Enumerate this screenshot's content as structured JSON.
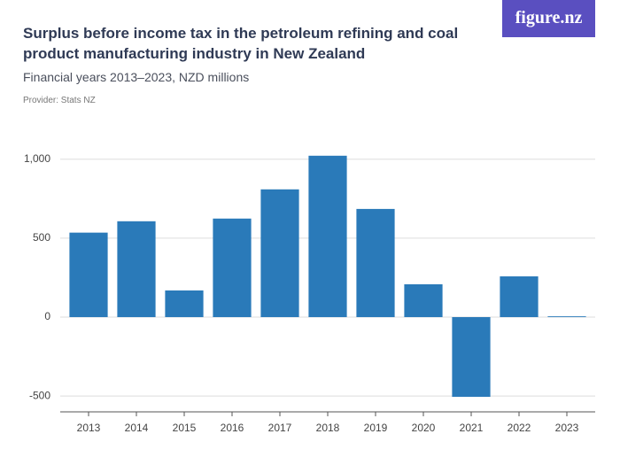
{
  "logo": "figure.nz",
  "chart_data": {
    "type": "bar",
    "title": "Surplus before income tax in the petroleum refining and coal product manufacturing industry in New Zealand",
    "subtitle": "Financial years 2013–2023, NZD millions",
    "caption": "Provider: Stats NZ",
    "categories": [
      "2013",
      "2014",
      "2015",
      "2016",
      "2017",
      "2018",
      "2019",
      "2020",
      "2021",
      "2022",
      "2023"
    ],
    "values": [
      535,
      607,
      169,
      624,
      809,
      1022,
      685,
      208,
      -505,
      258,
      5
    ],
    "color": "#2a7ab9",
    "ylim": [
      -600,
      1150
    ],
    "yticks": [
      -500,
      0,
      500,
      {
        "value": 1000,
        "label": "1,000"
      }
    ],
    "grid": true
  }
}
